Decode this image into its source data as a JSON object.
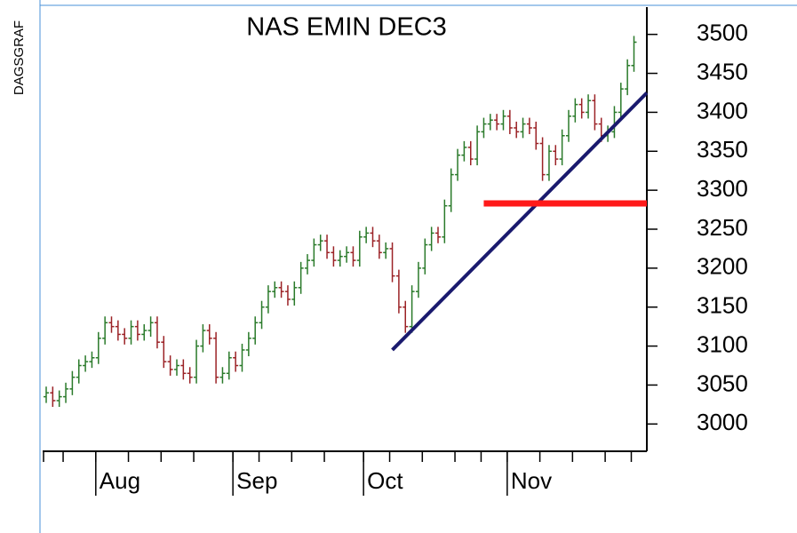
{
  "chart_data": {
    "type": "ohlc",
    "title": "NAS EMIN DEC3",
    "side_label": "DAGSGRAF",
    "categories": [
      null,
      null,
      null,
      null,
      null,
      null,
      null,
      null,
      "Aug",
      null,
      null,
      null,
      null,
      null,
      null,
      null,
      null,
      null,
      null,
      null,
      null,
      null,
      null,
      null,
      null,
      null,
      null,
      null,
      null,
      "Sep",
      null,
      null,
      null,
      null,
      null,
      null,
      null,
      null,
      null,
      null,
      null,
      null,
      null,
      null,
      null,
      null,
      null,
      null,
      null,
      "Oct",
      null,
      null,
      null,
      null,
      null,
      null,
      null,
      null,
      null,
      null,
      null,
      null,
      null,
      null,
      null,
      null,
      null,
      null,
      null,
      null,
      null,
      "Nov",
      null,
      null,
      null,
      null,
      null,
      null,
      null,
      null,
      null,
      null,
      null,
      null,
      null,
      null,
      null,
      null,
      null,
      null,
      null
    ],
    "open": [
      3035,
      3040,
      3030,
      3035,
      3045,
      3060,
      3075,
      3080,
      3085,
      3110,
      3130,
      3125,
      3115,
      3110,
      3125,
      3115,
      3120,
      3130,
      3105,
      3080,
      3070,
      3075,
      3065,
      3060,
      3100,
      3120,
      3110,
      3060,
      3065,
      3085,
      3075,
      3095,
      3110,
      3130,
      3150,
      3170,
      3175,
      3170,
      3160,
      3175,
      3200,
      3210,
      3230,
      3235,
      3220,
      3210,
      3215,
      3220,
      3210,
      3240,
      3245,
      3235,
      3220,
      3225,
      3190,
      3150,
      3125,
      3170,
      3200,
      3230,
      3245,
      3240,
      3280,
      3320,
      3345,
      3355,
      3340,
      3375,
      3385,
      3390,
      3385,
      3395,
      3380,
      3375,
      3385,
      3380,
      3360,
      3320,
      3350,
      3340,
      3370,
      3395,
      3410,
      3400,
      3415,
      3385,
      3370,
      3375,
      3400,
      3430,
      3460
    ],
    "high": [
      3048,
      3048,
      3043,
      3053,
      3068,
      3083,
      3088,
      3093,
      3118,
      3138,
      3138,
      3133,
      3123,
      3133,
      3133,
      3128,
      3138,
      3138,
      3113,
      3088,
      3083,
      3083,
      3073,
      3108,
      3128,
      3128,
      3118,
      3073,
      3093,
      3093,
      3103,
      3118,
      3138,
      3158,
      3178,
      3183,
      3183,
      3178,
      3183,
      3208,
      3218,
      3238,
      3243,
      3243,
      3228,
      3223,
      3228,
      3228,
      3248,
      3253,
      3253,
      3243,
      3233,
      3233,
      3198,
      3158,
      3178,
      3208,
      3238,
      3253,
      3253,
      3288,
      3328,
      3353,
      3363,
      3363,
      3383,
      3393,
      3398,
      3398,
      3403,
      3403,
      3388,
      3393,
      3393,
      3388,
      3368,
      3358,
      3358,
      3378,
      3403,
      3418,
      3418,
      3423,
      3423,
      3393,
      3383,
      3408,
      3438,
      3468,
      3498
    ],
    "low": [
      3027,
      3022,
      3022,
      3027,
      3037,
      3052,
      3067,
      3072,
      3077,
      3102,
      3117,
      3107,
      3102,
      3102,
      3107,
      3107,
      3112,
      3097,
      3072,
      3062,
      3062,
      3057,
      3052,
      3052,
      3092,
      3102,
      3052,
      3052,
      3057,
      3067,
      3067,
      3087,
      3102,
      3122,
      3142,
      3162,
      3162,
      3152,
      3152,
      3167,
      3192,
      3202,
      3222,
      3212,
      3202,
      3202,
      3207,
      3202,
      3202,
      3232,
      3227,
      3212,
      3212,
      3182,
      3142,
      3117,
      3117,
      3162,
      3192,
      3222,
      3232,
      3232,
      3272,
      3312,
      3337,
      3332,
      3332,
      3367,
      3377,
      3377,
      3377,
      3372,
      3367,
      3367,
      3372,
      3352,
      3312,
      3312,
      3332,
      3332,
      3362,
      3387,
      3392,
      3392,
      3377,
      3362,
      3362,
      3367,
      3392,
      3422,
      3452
    ],
    "close": [
      3040,
      3030,
      3035,
      3045,
      3060,
      3075,
      3080,
      3085,
      3110,
      3130,
      3125,
      3115,
      3110,
      3125,
      3115,
      3120,
      3130,
      3105,
      3080,
      3070,
      3075,
      3065,
      3060,
      3100,
      3120,
      3110,
      3060,
      3065,
      3085,
      3075,
      3095,
      3110,
      3130,
      3150,
      3170,
      3175,
      3170,
      3160,
      3175,
      3200,
      3210,
      3230,
      3235,
      3220,
      3210,
      3215,
      3220,
      3210,
      3240,
      3245,
      3235,
      3220,
      3225,
      3190,
      3150,
      3125,
      3170,
      3200,
      3230,
      3245,
      3240,
      3280,
      3320,
      3345,
      3355,
      3340,
      3375,
      3385,
      3390,
      3385,
      3395,
      3380,
      3375,
      3385,
      3380,
      3360,
      3320,
      3350,
      3340,
      3370,
      3395,
      3410,
      3400,
      3415,
      3385,
      3370,
      3375,
      3400,
      3430,
      3460,
      3490
    ],
    "up_color": "#2a7a2a",
    "down_color": "#9b2226",
    "ylim": [
      2965,
      3535
    ],
    "yticks": [
      3000,
      3050,
      3100,
      3150,
      3200,
      3250,
      3300,
      3350,
      3400,
      3450,
      3500
    ],
    "xticks": [
      0,
      3,
      8,
      13,
      18,
      23,
      29,
      33,
      38,
      43,
      49,
      53,
      58,
      63,
      67,
      71,
      76,
      81,
      86,
      90
    ],
    "trend_line": {
      "from": {
        "x": 53,
        "value": 3095
      },
      "to": {
        "x": 92,
        "value": 3425
      },
      "color": "#1a1a6e"
    },
    "level_line": {
      "from": 67,
      "to": 92,
      "value": 3283,
      "color": "#ff1a1a"
    }
  }
}
